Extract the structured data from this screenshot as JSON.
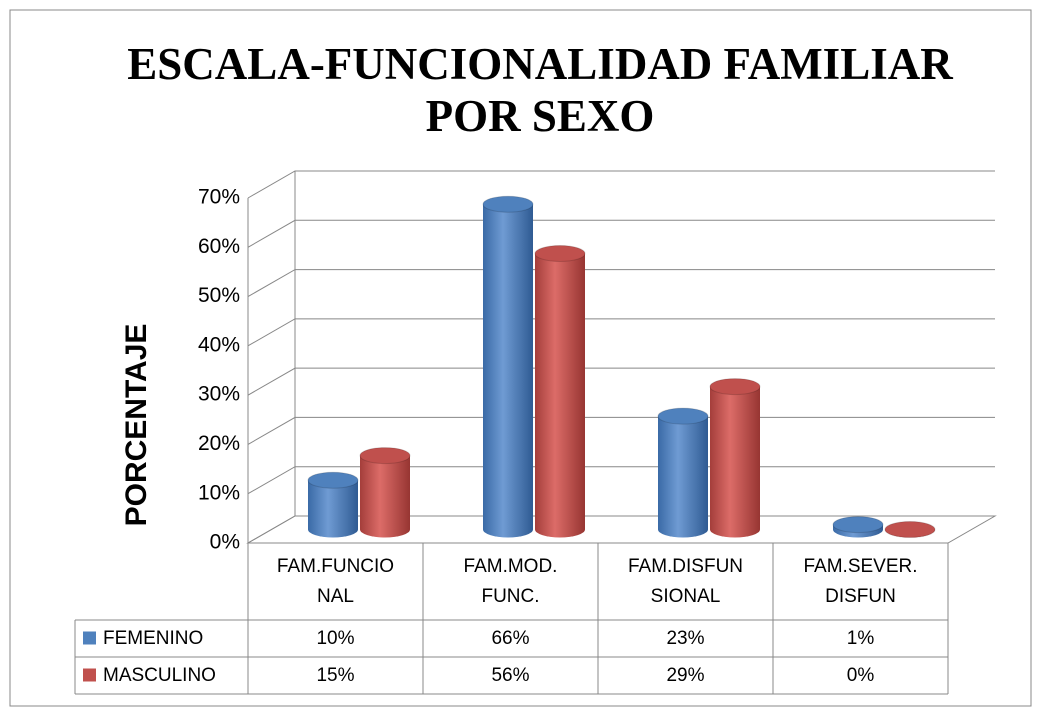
{
  "chart_data": {
    "type": "bar3d",
    "title": "ESCALA-FUNCIONALIDAD FAMILIAR POR SEXO",
    "y_label": "PORCENTAJE",
    "categories": [
      "FAM.FUNCIONAL",
      "FAM.MOD. FUNC.",
      "FAM.DISFUNSIONAL",
      "FAM.SEVER. DISFUN"
    ],
    "series": [
      {
        "name": "FEMENINO",
        "color": "#4f81bd",
        "values": [
          10,
          66,
          23,
          1
        ],
        "value_labels": [
          "10%",
          "66%",
          "23%",
          "1%"
        ]
      },
      {
        "name": "MASCULINO",
        "color": "#c0504d",
        "values": [
          15,
          56,
          29,
          0
        ],
        "value_labels": [
          "15%",
          "56%",
          "29%",
          "0%"
        ]
      }
    ],
    "ylim": [
      0,
      70
    ],
    "yticks": [
      {
        "value": 0,
        "label": "0%"
      },
      {
        "value": 10,
        "label": "10%"
      },
      {
        "value": 20,
        "label": "20%"
      },
      {
        "value": 30,
        "label": "30%"
      },
      {
        "value": 40,
        "label": "40%"
      },
      {
        "value": 50,
        "label": "50%"
      },
      {
        "value": 60,
        "label": "60%"
      },
      {
        "value": 70,
        "label": "70%"
      }
    ],
    "grid": true
  }
}
